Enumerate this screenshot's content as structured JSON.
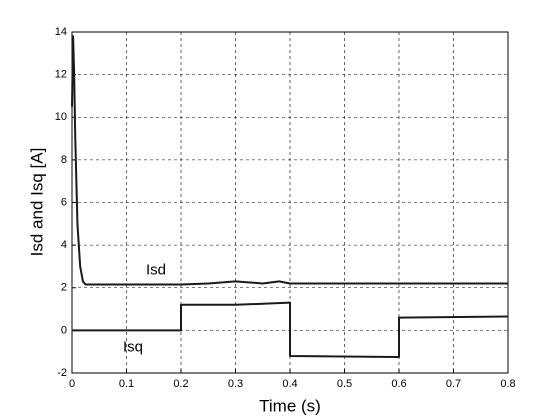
{
  "chart_data": {
    "type": "line",
    "xlabel": "Time (s)",
    "ylabel": "Isd and Isq [A]",
    "xlim": [
      0,
      0.8
    ],
    "xticks": [
      0,
      0.1,
      0.2,
      0.3,
      0.4,
      0.5,
      0.6,
      0.7,
      0.8
    ],
    "ylim": [
      -2,
      14
    ],
    "yticks": [
      -2,
      0,
      2,
      4,
      6,
      8,
      10,
      12,
      14
    ],
    "grid": true,
    "series": [
      {
        "name": "Isd",
        "color": "#1a1a1a",
        "x": [
          0,
          0.002,
          0.004,
          0.006,
          0.01,
          0.015,
          0.02,
          0.025,
          0.1,
          0.2,
          0.25,
          0.3,
          0.35,
          0.38,
          0.4,
          0.45,
          0.5,
          0.6,
          0.7,
          0.8
        ],
        "values": [
          10.5,
          13.8,
          12.0,
          9.0,
          5.0,
          3.0,
          2.3,
          2.15,
          2.15,
          2.15,
          2.2,
          2.3,
          2.2,
          2.3,
          2.2,
          2.2,
          2.2,
          2.2,
          2.2,
          2.2
        ]
      },
      {
        "name": "Isq",
        "color": "#1a1a1a",
        "x": [
          0,
          0.2,
          0.2,
          0.3,
          0.4,
          0.4,
          0.6,
          0.6,
          0.8
        ],
        "values": [
          0,
          0,
          1.2,
          1.2,
          1.3,
          -1.2,
          -1.25,
          0.6,
          0.65
        ]
      }
    ]
  }
}
